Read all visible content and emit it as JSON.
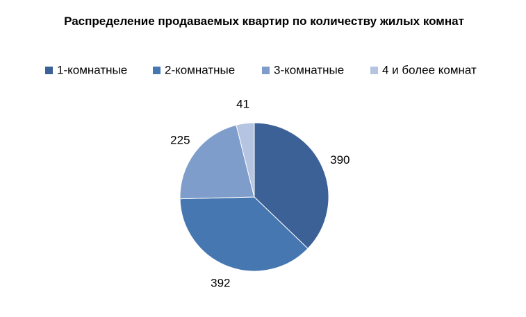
{
  "chart_data": {
    "type": "pie",
    "title": "Распределение продаваемых квартир по количеству жилых комнат",
    "categories": [
      "1-комнатные",
      "2-комнатные",
      "3-комнатные",
      "4 и более комнат"
    ],
    "values": [
      390,
      392,
      225,
      41
    ],
    "colors": [
      "#3b6196",
      "#4677b1",
      "#7f9dcb",
      "#b4c4e1"
    ],
    "legend": "top"
  }
}
